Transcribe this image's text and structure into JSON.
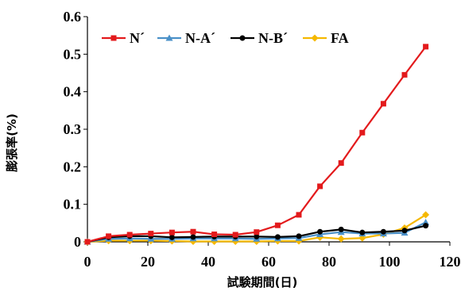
{
  "chart_data": {
    "type": "line",
    "xlabel": "試験期間(日)",
    "ylabel": "膨張率(%)",
    "xlim": [
      0,
      120
    ],
    "ylim": [
      0,
      0.6
    ],
    "xticks": [
      "0",
      "20",
      "40",
      "60",
      "80",
      "100",
      "120"
    ],
    "yticks": [
      "0",
      "0.1",
      "0.2",
      "0.3",
      "0.4",
      "0.5",
      "0.6"
    ],
    "legend_position": "top-left",
    "grid": false,
    "series": [
      {
        "name": "N´",
        "color": "#e31a1c",
        "marker": "square",
        "x": [
          0,
          7,
          14,
          21,
          28,
          35,
          42,
          49,
          56,
          63,
          70,
          77,
          84,
          91,
          98,
          105,
          112
        ],
        "y": [
          0,
          0.015,
          0.019,
          0.022,
          0.025,
          0.027,
          0.02,
          0.019,
          0.026,
          0.044,
          0.072,
          0.148,
          0.21,
          0.291,
          0.368,
          0.445,
          0.52
        ]
      },
      {
        "name": "N-A´",
        "color": "#4a90c8",
        "marker": "triangle",
        "x": [
          0,
          7,
          14,
          21,
          28,
          35,
          42,
          49,
          56,
          63,
          70,
          77,
          84,
          91,
          98,
          105,
          112
        ],
        "y": [
          0,
          0.008,
          0.009,
          0.008,
          0.008,
          0.009,
          0.009,
          0.009,
          0.008,
          0.009,
          0.01,
          0.02,
          0.026,
          0.022,
          0.022,
          0.024,
          0.052
        ]
      },
      {
        "name": "N-B´",
        "color": "#000000",
        "marker": "circle",
        "x": [
          0,
          7,
          14,
          21,
          28,
          35,
          42,
          49,
          56,
          63,
          70,
          77,
          84,
          91,
          98,
          105,
          112
        ],
        "y": [
          0,
          0.012,
          0.015,
          0.015,
          0.012,
          0.013,
          0.014,
          0.014,
          0.014,
          0.013,
          0.015,
          0.027,
          0.033,
          0.025,
          0.027,
          0.03,
          0.043
        ]
      },
      {
        "name": "FA",
        "color": "#f5b800",
        "marker": "diamond",
        "x": [
          0,
          7,
          14,
          21,
          28,
          35,
          42,
          49,
          56,
          63,
          70,
          77,
          84,
          91,
          98,
          105,
          112
        ],
        "y": [
          0,
          0.003,
          0.003,
          0.003,
          0.002,
          0.001,
          0.001,
          0.001,
          0.001,
          0.002,
          0.002,
          0.012,
          0.008,
          0.01,
          0.02,
          0.037,
          0.072
        ]
      }
    ]
  }
}
